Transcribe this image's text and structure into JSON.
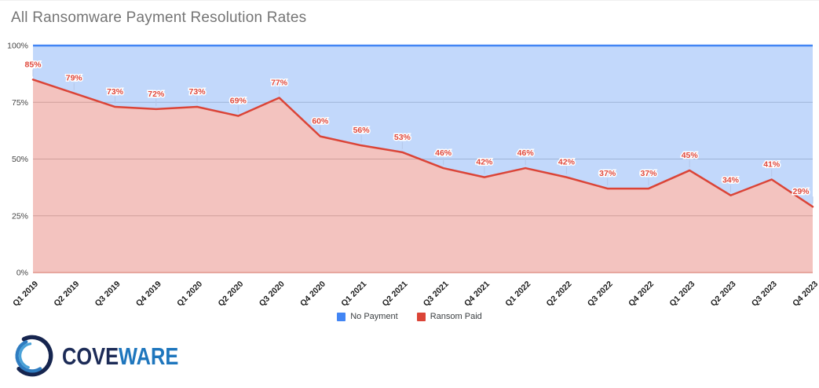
{
  "page": {
    "title": "All Ransomware Payment Resolution Rates"
  },
  "chart_data": {
    "type": "area",
    "subtype": "100-percent-stacked",
    "title": "All Ransomware Payment Resolution Rates",
    "categories": [
      "Q1 2019",
      "Q2 2019",
      "Q3 2019",
      "Q4 2019",
      "Q1 2020",
      "Q2 2020",
      "Q3 2020",
      "Q4 2020",
      "Q1 2021",
      "Q2 2021",
      "Q3 2021",
      "Q4 2021",
      "Q1 2022",
      "Q2 2022",
      "Q3 2022",
      "Q4 2022",
      "Q1 2023",
      "Q2 2023",
      "Q3 2023",
      "Q4 2023"
    ],
    "series": [
      {
        "name": "No Payment",
        "color": "#4285f4",
        "values": [
          15,
          21,
          27,
          28,
          27,
          31,
          23,
          40,
          44,
          47,
          54,
          58,
          54,
          58,
          63,
          63,
          55,
          66,
          59,
          71
        ]
      },
      {
        "name": "Ransom Paid",
        "color": "#db4437",
        "values": [
          85,
          79,
          73,
          72,
          73,
          69,
          77,
          60,
          56,
          53,
          46,
          42,
          46,
          42,
          37,
          37,
          45,
          34,
          41,
          29
        ]
      }
    ],
    "data_labels": [
      "85%",
      "79%",
      "73%",
      "72%",
      "73%",
      "69%",
      "77%",
      "60%",
      "56%",
      "53%",
      "46%",
      "42%",
      "46%",
      "42%",
      "37%",
      "37%",
      "45%",
      "34%",
      "41%",
      "29%"
    ],
    "xlabel": "",
    "ylabel": "",
    "ylim": [
      0,
      100
    ],
    "yticks": [
      "0%",
      "25%",
      "50%",
      "75%",
      "100%"
    ],
    "grid": true,
    "grid_color": "#cccccc",
    "annotation_color": "#e0493c",
    "axis_label_color": "#1a1a1a",
    "ytick_color": "#444444",
    "legend_position": "bottom"
  },
  "legend": {
    "items": [
      {
        "label": "No Payment",
        "color": "#4285f4"
      },
      {
        "label": "Ransom Paid",
        "color": "#db4437"
      }
    ]
  },
  "logo": {
    "cove": "COVE",
    "ware": "WARE"
  }
}
